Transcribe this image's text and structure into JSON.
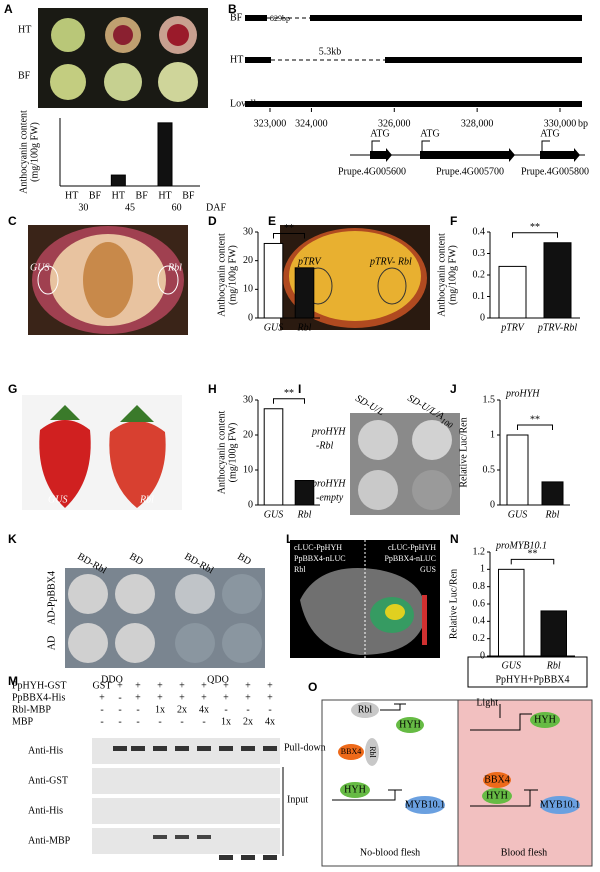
{
  "panel_labels": [
    "A",
    "B",
    "C",
    "D",
    "E",
    "F",
    "G",
    "H",
    "I",
    "J",
    "K",
    "L",
    "M",
    "N",
    "O"
  ],
  "chart_data": [
    {
      "type": "bar",
      "ylabel": [
        "Anthocyanin content",
        "(mg/100g FW)"
      ],
      "categories": [
        "HT",
        "BF",
        "HT",
        "BF",
        "HT",
        "BF"
      ],
      "groups": [
        "30",
        "45",
        "60"
      ],
      "xlabel": "DAF",
      "values": [
        0,
        0,
        4.5,
        0,
        26,
        0
      ],
      "colors": [
        "#111111",
        "#ffffff",
        "#111111",
        "#ffffff",
        "#111111",
        "#ffffff"
      ],
      "ylim": [
        0,
        28
      ]
    },
    {
      "type": "bar",
      "ylabel": [
        "Anthocyanin content",
        "(mg/100g FW)"
      ],
      "categories": [
        "GUS",
        "Rbl"
      ],
      "values": [
        26,
        17.5
      ],
      "colors": [
        "#ffffff",
        "#111111"
      ],
      "ylim": [
        0,
        30
      ],
      "yticks": [
        0,
        10,
        20,
        30
      ],
      "significance": "**"
    },
    {
      "type": "bar",
      "ylabel": [
        "Anthocyanin content",
        "(mg/100g FW)"
      ],
      "categories": [
        "pTRV",
        "pTRV-Rbl"
      ],
      "values": [
        0.24,
        0.35
      ],
      "colors": [
        "#ffffff",
        "#111111"
      ],
      "ylim": [
        0,
        0.4
      ],
      "yticks": [
        0,
        0.1,
        0.2,
        0.3,
        0.4
      ],
      "significance": "**"
    },
    {
      "type": "bar",
      "ylabel": [
        "Anthocyanin content",
        "(mg/100g FW)"
      ],
      "categories": [
        "GUS",
        "Rbl"
      ],
      "values": [
        27.5,
        7
      ],
      "colors": [
        "#ffffff",
        "#111111"
      ],
      "ylim": [
        0,
        30
      ],
      "yticks": [
        0,
        10,
        20,
        30
      ],
      "significance": "**"
    },
    {
      "type": "bar",
      "title": "proHYH",
      "ylabel": [
        "Relative Luc/Ren"
      ],
      "categories": [
        "GUS",
        "Rbl"
      ],
      "values": [
        1.0,
        0.33
      ],
      "colors": [
        "#ffffff",
        "#111111"
      ],
      "ylim": [
        0,
        1.5
      ],
      "yticks": [
        0,
        0.5,
        1,
        1.5
      ],
      "significance": "**"
    },
    {
      "type": "bar",
      "title": "proMYB10.1",
      "ylabel": [
        "Relative Luc/Ren"
      ],
      "categories": [
        "GUS",
        "Rbl"
      ],
      "xlabel": "PpHYH+PpBBX4",
      "values": [
        1.0,
        0.52
      ],
      "colors": [
        "#ffffff",
        "#111111"
      ],
      "ylim": [
        0,
        1.2
      ],
      "yticks": [
        0,
        0.2,
        0.4,
        0.6,
        0.8,
        1,
        1.2
      ],
      "significance": "**"
    }
  ],
  "panel_a": {
    "rows": [
      "HT",
      "BF"
    ]
  },
  "panel_b": {
    "tracks": [
      "BF",
      "HT",
      "Lovell"
    ],
    "annotations": [
      "829bp",
      "5.3kb"
    ],
    "xlim": [
      322600,
      330400
    ],
    "xticks": [
      {
        "value": 323000,
        "label": "323,000"
      },
      {
        "value": 324000,
        "label": "324,000"
      },
      {
        "value": 326000,
        "label": "326,000"
      },
      {
        "value": 328000,
        "label": "328,000"
      },
      {
        "value": 330000,
        "label": "330,000"
      }
    ],
    "unit": "bp",
    "start_codons": [
      "ATG",
      "ATG",
      "ATG"
    ],
    "genes": [
      "Prupe.4G005600",
      "Prupe.4G005700",
      "Prupe.4G005800"
    ]
  },
  "panel_c": {
    "labels": [
      "GUS",
      "Rbl"
    ]
  },
  "panel_e": {
    "labels": [
      "pTRV",
      "pTRV- Rbl"
    ]
  },
  "panel_g": {
    "labels": [
      "GUS",
      "Rbl"
    ]
  },
  "panel_i": {
    "columns": [
      "SD-U/L",
      "SD-U/L/A"
    ],
    "subscript": "100",
    "rows": [
      [
        "proHYH",
        "-Rbl"
      ],
      [
        "proHYH",
        "-empty"
      ]
    ]
  },
  "panel_k": {
    "columns": [
      "BD-Rbl",
      "BD",
      "BD-Rbl",
      "BD"
    ],
    "rows": [
      "AD-PpBBX4",
      "AD"
    ],
    "media": [
      "DDO",
      "QDO"
    ]
  },
  "panel_l": {
    "left": [
      "cLUC-PpHYH",
      "PpBBX4-nLUC",
      "Rbl"
    ],
    "right": [
      "cLUC-PpHYH",
      "PpBBX4-nLUC",
      "GUS"
    ]
  },
  "panel_m": {
    "rows": [
      {
        "label": "PpHYH-GST",
        "cells": [
          "GST",
          "+",
          "+",
          "+",
          "+",
          "+",
          "+",
          "+",
          "+"
        ]
      },
      {
        "label": "PpBBX4-His",
        "cells": [
          "+",
          "-",
          "+",
          "+",
          "+",
          "+",
          "+",
          "+",
          "+"
        ]
      },
      {
        "label": "Rbl-MBP",
        "cells": [
          "-",
          "-",
          "-",
          "1x",
          "2x",
          "4x",
          "-",
          "-",
          "-"
        ]
      },
      {
        "label": "MBP",
        "cells": [
          "-",
          "-",
          "-",
          "-",
          "-",
          "-",
          "1x",
          "2x",
          "4x"
        ]
      }
    ],
    "blots": [
      "Anti-His",
      "Anti-GST",
      "Anti-His",
      "Anti-MBP"
    ],
    "groups": [
      "Pull-down",
      "Input"
    ]
  },
  "panel_o": {
    "left": {
      "nodes": [
        "Rbl",
        "HYH",
        "BBX4",
        "Rbl",
        "HYH",
        "MYB10.1"
      ],
      "caption": "No-blood flesh"
    },
    "right": {
      "nodes": [
        "Light",
        "HYH",
        "BBX4",
        "HYH",
        "MYB10.1"
      ],
      "caption": "Blood flesh"
    }
  }
}
